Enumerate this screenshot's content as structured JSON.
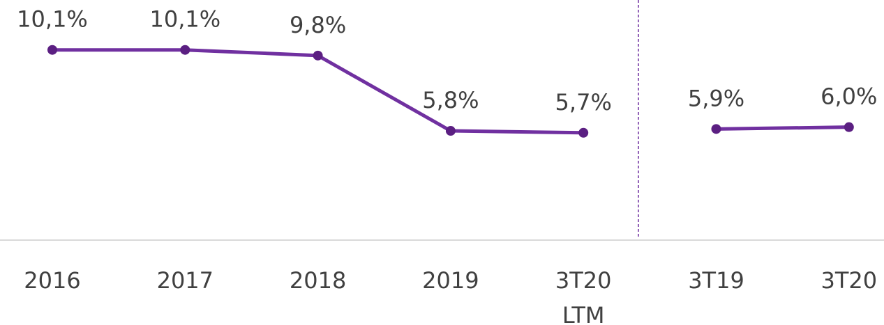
{
  "chart_data": {
    "type": "line",
    "categories": [
      "2016",
      "2017",
      "2018",
      "2019",
      "3T20\nLTM",
      "3T19",
      "3T20"
    ],
    "series": [
      {
        "color": "#7030a0",
        "values": [
          10.1,
          10.1,
          9.8,
          5.8,
          5.7,
          null,
          null
        ],
        "value_labels": [
          "10,1%",
          "10,1%",
          "9,8%",
          "5,8%",
          "5,7%",
          null,
          null
        ]
      },
      {
        "color": "#7030a0",
        "values": [
          null,
          null,
          null,
          null,
          null,
          5.9,
          6.0
        ],
        "value_labels": [
          null,
          null,
          null,
          null,
          null,
          "5,9%",
          "6,0%"
        ]
      }
    ],
    "ylim": [
      0,
      12.75
    ]
  }
}
